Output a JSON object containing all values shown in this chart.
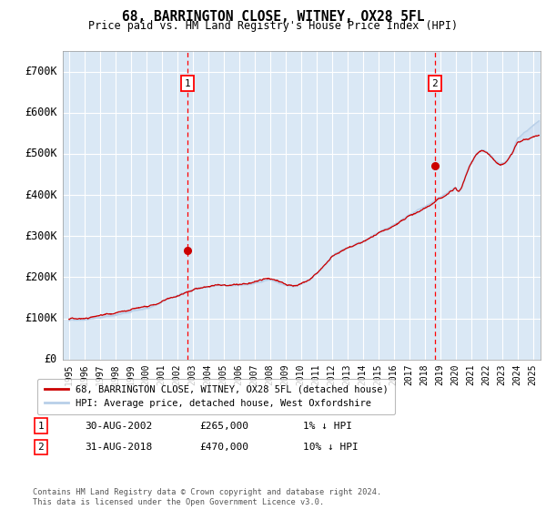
{
  "title": "68, BARRINGTON CLOSE, WITNEY, OX28 5FL",
  "subtitle": "Price paid vs. HM Land Registry's House Price Index (HPI)",
  "xlim_start": 1994.6,
  "xlim_end": 2025.5,
  "ylim": [
    0,
    750000
  ],
  "yticks": [
    0,
    100000,
    200000,
    300000,
    400000,
    500000,
    600000,
    700000
  ],
  "ytick_labels": [
    "£0",
    "£100K",
    "£200K",
    "£300K",
    "£400K",
    "£500K",
    "£600K",
    "£700K"
  ],
  "hpi_color": "#b8cfe8",
  "hpi_fill_color": "#c8daf0",
  "price_color": "#cc0000",
  "bg_color": "#dae8f5",
  "grid_color": "#ffffff",
  "legend_label_red": "68, BARRINGTON CLOSE, WITNEY, OX28 5FL (detached house)",
  "legend_label_blue": "HPI: Average price, detached house, West Oxfordshire",
  "transaction1_date": 2002.664,
  "transaction1_price": 265000,
  "transaction1_label": "1",
  "transaction2_date": 2018.664,
  "transaction2_price": 470000,
  "transaction2_label": "2",
  "footnote_line1": "Contains HM Land Registry data © Crown copyright and database right 2024.",
  "footnote_line2": "This data is licensed under the Open Government Licence v3.0.",
  "table_row1": [
    "1",
    "30-AUG-2002",
    "£265,000",
    "1% ↓ HPI"
  ],
  "table_row2": [
    "2",
    "31-AUG-2018",
    "£470,000",
    "10% ↓ HPI"
  ]
}
